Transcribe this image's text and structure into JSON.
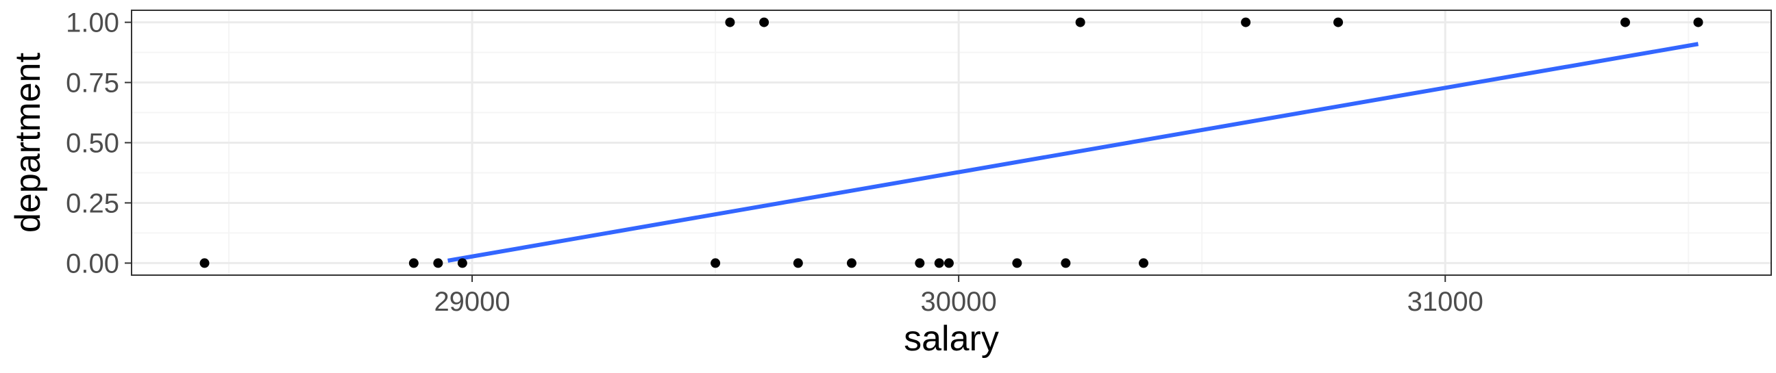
{
  "chart_data": {
    "type": "scatter",
    "xlabel": "salary",
    "ylabel": "department",
    "xlim": [
      28300,
      31670
    ],
    "ylim": [
      -0.05,
      1.05
    ],
    "x_ticks": [
      29000,
      30000,
      31000
    ],
    "x_minor_ticks": [
      28500,
      29500,
      30500,
      31500
    ],
    "y_ticks": [
      0.0,
      0.25,
      0.5,
      0.75,
      1.0
    ],
    "y_tick_labels": [
      "0.00",
      "0.25",
      "0.50",
      "0.75",
      "1.00"
    ],
    "y_minor_ticks": [
      0.125,
      0.375,
      0.625,
      0.875
    ],
    "grid": true,
    "points": {
      "x": [
        28450,
        28880,
        28930,
        28980,
        29500,
        29530,
        29600,
        29670,
        29780,
        29920,
        29960,
        29980,
        30120,
        30220,
        30250,
        30380,
        30590,
        30780,
        31370,
        31520
      ],
      "y": [
        0,
        0,
        0,
        0,
        0,
        1,
        1,
        0,
        0,
        0,
        0,
        0,
        0,
        0,
        1,
        0,
        1,
        1,
        1,
        1
      ]
    },
    "fit_line": {
      "x": [
        28950,
        31520
      ],
      "y": [
        0.01,
        0.91
      ],
      "color": "#3366ff"
    },
    "colors": {
      "points": "#000000",
      "panel_border": "#333333",
      "grid_major": "#ebebeb",
      "grid_minor": "#f5f5f5"
    }
  }
}
